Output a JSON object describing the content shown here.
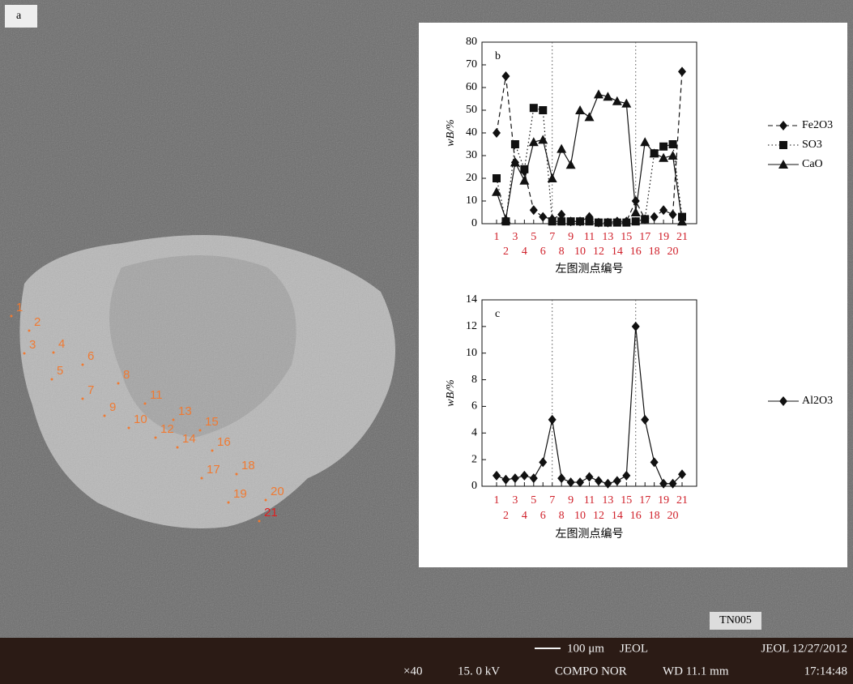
{
  "micrograph": {
    "panel_label": "a",
    "point_labels": [
      "1",
      "2",
      "3",
      "4",
      "5",
      "6",
      "7",
      "8",
      "9",
      "10",
      "11",
      "12",
      "13",
      "14",
      "15",
      "16",
      "17",
      "18",
      "19",
      "20",
      "21"
    ],
    "sample_id": "TN005",
    "footer": {
      "scale": "100 μm",
      "maker": "JEOL",
      "date": "JEOL 12/27/2012",
      "magnification": "×40",
      "voltage": "15. 0 kV",
      "mode": "COMPO NOR",
      "distance": "WD 11.1 mm",
      "time": "17:14:48"
    }
  },
  "chart_data": [
    {
      "type": "line",
      "panel_label": "b",
      "x_label": "左图测点编号",
      "y_label": "wB/%",
      "categories": [
        "1",
        "2",
        "3",
        "4",
        "5",
        "6",
        "7",
        "8",
        "9",
        "10",
        "11",
        "12",
        "13",
        "14",
        "15",
        "16",
        "17",
        "18",
        "19",
        "20",
        "21"
      ],
      "reference_lines": [
        "7",
        "16"
      ],
      "ylim": [
        0,
        80
      ],
      "yticks": [
        0,
        10,
        20,
        30,
        40,
        50,
        60,
        70,
        80
      ],
      "legend": "right",
      "series": [
        {
          "name": "Fe2O3",
          "color": "#111111",
          "marker": "diamond",
          "dash": "dashed",
          "values": [
            40,
            65,
            27,
            23,
            6,
            3,
            2,
            4,
            1,
            1,
            3,
            0.5,
            0.5,
            1,
            1,
            10,
            2,
            3,
            6,
            4,
            67
          ]
        },
        {
          "name": "SO3",
          "color": "#111111",
          "marker": "square",
          "dash": "dotted",
          "values": [
            20,
            1,
            35,
            24,
            51,
            50,
            1,
            1,
            1,
            1,
            1,
            0.5,
            0.5,
            0.5,
            0.5,
            1,
            2,
            31,
            34,
            35,
            3
          ]
        },
        {
          "name": "CaO",
          "color": "#111111",
          "marker": "triangle",
          "dash": "solid",
          "values": [
            14,
            2,
            27,
            19,
            36,
            37,
            20,
            33,
            26,
            50,
            47,
            57,
            56,
            54,
            53,
            5,
            36,
            31,
            29,
            30,
            1
          ]
        }
      ]
    },
    {
      "type": "line",
      "panel_label": "c",
      "x_label": "左图测点编号",
      "y_label": "wB/%",
      "categories": [
        "1",
        "2",
        "3",
        "4",
        "5",
        "6",
        "7",
        "8",
        "9",
        "10",
        "11",
        "12",
        "13",
        "14",
        "15",
        "16",
        "17",
        "18",
        "19",
        "20",
        "21"
      ],
      "reference_lines": [
        "7",
        "16"
      ],
      "ylim": [
        0,
        14
      ],
      "yticks": [
        0,
        2,
        4,
        6,
        8,
        10,
        12,
        14
      ],
      "legend": "right",
      "series": [
        {
          "name": "Al2O3",
          "color": "#111111",
          "marker": "diamond",
          "dash": "solid",
          "values": [
            0.8,
            0.5,
            0.6,
            0.8,
            0.6,
            1.8,
            5,
            0.6,
            0.3,
            0.3,
            0.7,
            0.4,
            0.2,
            0.4,
            0.8,
            12,
            5,
            1.8,
            0.2,
            0.2,
            0.9
          ]
        }
      ]
    }
  ]
}
